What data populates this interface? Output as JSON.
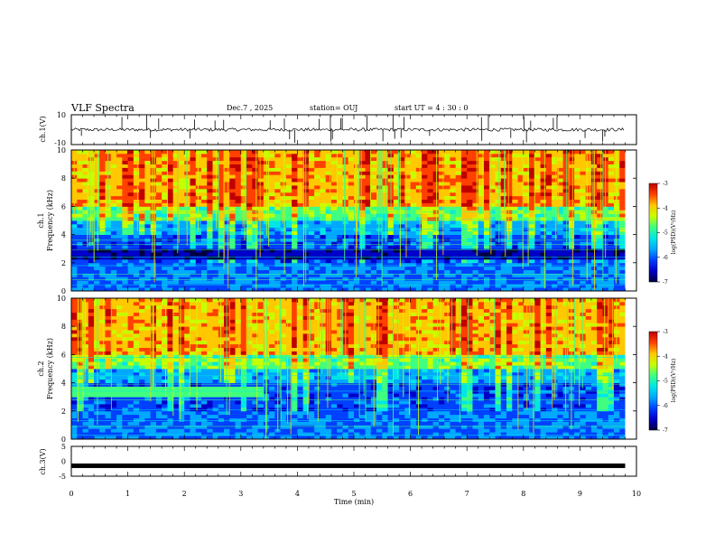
{
  "header": {
    "title": "VLF Spectra",
    "date": "Dec.7 , 2025",
    "station": "station= OUJ",
    "start_ut": "start  UT =   4 : 30 : 0"
  },
  "chart_data": [
    {
      "type": "line",
      "name": "ch1-waveform",
      "ylabel": "ch.1(V)",
      "ylim": [
        -10,
        10
      ],
      "yticks": [
        "10",
        "-10"
      ],
      "baseline": 0,
      "xlim": [
        0,
        10
      ],
      "data_end_min": 9.8
    },
    {
      "type": "heatmap",
      "name": "ch1-spectrogram",
      "ylabel": "ch.1\nFrequency (kHz)",
      "ylim": [
        0,
        10
      ],
      "yticks": [
        "0",
        "2",
        "4",
        "6",
        "8",
        "10"
      ],
      "xlim": [
        0,
        10
      ],
      "data_end_min": 9.8,
      "colorbar": {
        "label": "log(PSD)(V²/Hz)",
        "range": [
          -7,
          -3
        ],
        "ticks": [
          "-3",
          "-4",
          "-5",
          "-6",
          "-7"
        ]
      }
    },
    {
      "type": "heatmap",
      "name": "ch2-spectrogram",
      "ylabel": "ch.2\nFrequency (kHz)",
      "ylim": [
        0,
        10
      ],
      "yticks": [
        "0",
        "2",
        "4",
        "6",
        "8",
        "10"
      ],
      "xlim": [
        0,
        10
      ],
      "data_end_min": 9.8,
      "colorbar": {
        "label": "log(PSD)(V²/Hz)",
        "range": [
          -7,
          -3
        ],
        "ticks": [
          "-3",
          "-4",
          "-5",
          "-6",
          "-7"
        ]
      }
    },
    {
      "type": "line",
      "name": "ch3-waveform",
      "ylabel": "ch.3(V)",
      "ylim": [
        -5,
        5
      ],
      "yticks": [
        "5",
        "0",
        "-5"
      ],
      "value": -1.5,
      "xlim": [
        0,
        10
      ],
      "xlabel": "Time (min)",
      "xticks": [
        "0",
        "1",
        "2",
        "3",
        "4",
        "5",
        "6",
        "7",
        "8",
        "9",
        "10"
      ],
      "data_end_min": 9.8
    }
  ],
  "colors": {
    "colormap": [
      "#000040",
      "#0000c8",
      "#0040ff",
      "#00a8ff",
      "#00e6e6",
      "#40ff80",
      "#c8ff00",
      "#ffc800",
      "#ff4000",
      "#c00000"
    ],
    "line": "#000000"
  }
}
